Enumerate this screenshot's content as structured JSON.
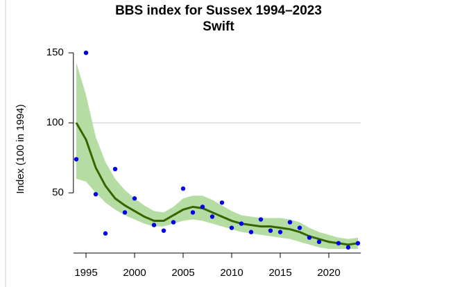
{
  "chart_data": {
    "type": "line",
    "title": "BBS index for Sussex 1994–2023",
    "subtitle": "Swift",
    "y_label": "Index (100 in 1994)",
    "x": [
      1994,
      1995,
      1996,
      1997,
      1998,
      1999,
      2000,
      2001,
      2002,
      2003,
      2004,
      2005,
      2006,
      2007,
      2008,
      2009,
      2010,
      2011,
      2012,
      2013,
      2014,
      2015,
      2016,
      2017,
      2018,
      2019,
      2020,
      2021,
      2022,
      2023
    ],
    "series": [
      {
        "color": "#336600",
        "values": [
          100,
          88,
          68,
          55,
          46,
          41,
          37,
          33,
          30,
          30,
          34,
          38,
          40,
          39,
          36,
          33,
          30,
          28,
          27,
          26,
          26,
          25,
          24,
          22,
          19,
          17,
          15,
          14,
          13,
          14
        ],
        "band_color": "#b5dda3",
        "lower": [
          60,
          58,
          50,
          43,
          38,
          34,
          31,
          28,
          26,
          26,
          28,
          30,
          31,
          30,
          28,
          26,
          24,
          22,
          21,
          20,
          19,
          18,
          17,
          15,
          13,
          11,
          10,
          10,
          10,
          10
        ],
        "upper": [
          143,
          120,
          90,
          72,
          60,
          52,
          46,
          41,
          37,
          36,
          40,
          46,
          48,
          48,
          45,
          41,
          37,
          34,
          33,
          32,
          32,
          32,
          31,
          29,
          25,
          22,
          20,
          18,
          17,
          18
        ]
      }
    ],
    "points": {
      "color": "#0000ee",
      "x": [
        1994,
        1995,
        1996,
        1997,
        1998,
        1999,
        2000,
        2002,
        2003,
        2004,
        2005,
        2006,
        2007,
        2008,
        2009,
        2010,
        2011,
        2012,
        2013,
        2014,
        2015,
        2016,
        2017,
        2018,
        2019,
        2021,
        2022,
        2023
      ],
      "values": [
        74,
        150,
        49,
        21,
        67,
        36,
        46,
        27,
        23,
        29,
        53,
        36,
        40,
        33,
        43,
        25,
        28,
        22,
        31,
        23,
        22,
        29,
        25,
        18,
        15,
        14,
        11,
        14
      ]
    },
    "reference_line": 100,
    "xlim": [
      1993.7,
      2023.3
    ],
    "xticks": [
      1995,
      2000,
      2005,
      2010,
      2015,
      2020
    ],
    "ylim": [
      7,
      160
    ],
    "yticks": [
      50,
      100,
      150
    ]
  }
}
